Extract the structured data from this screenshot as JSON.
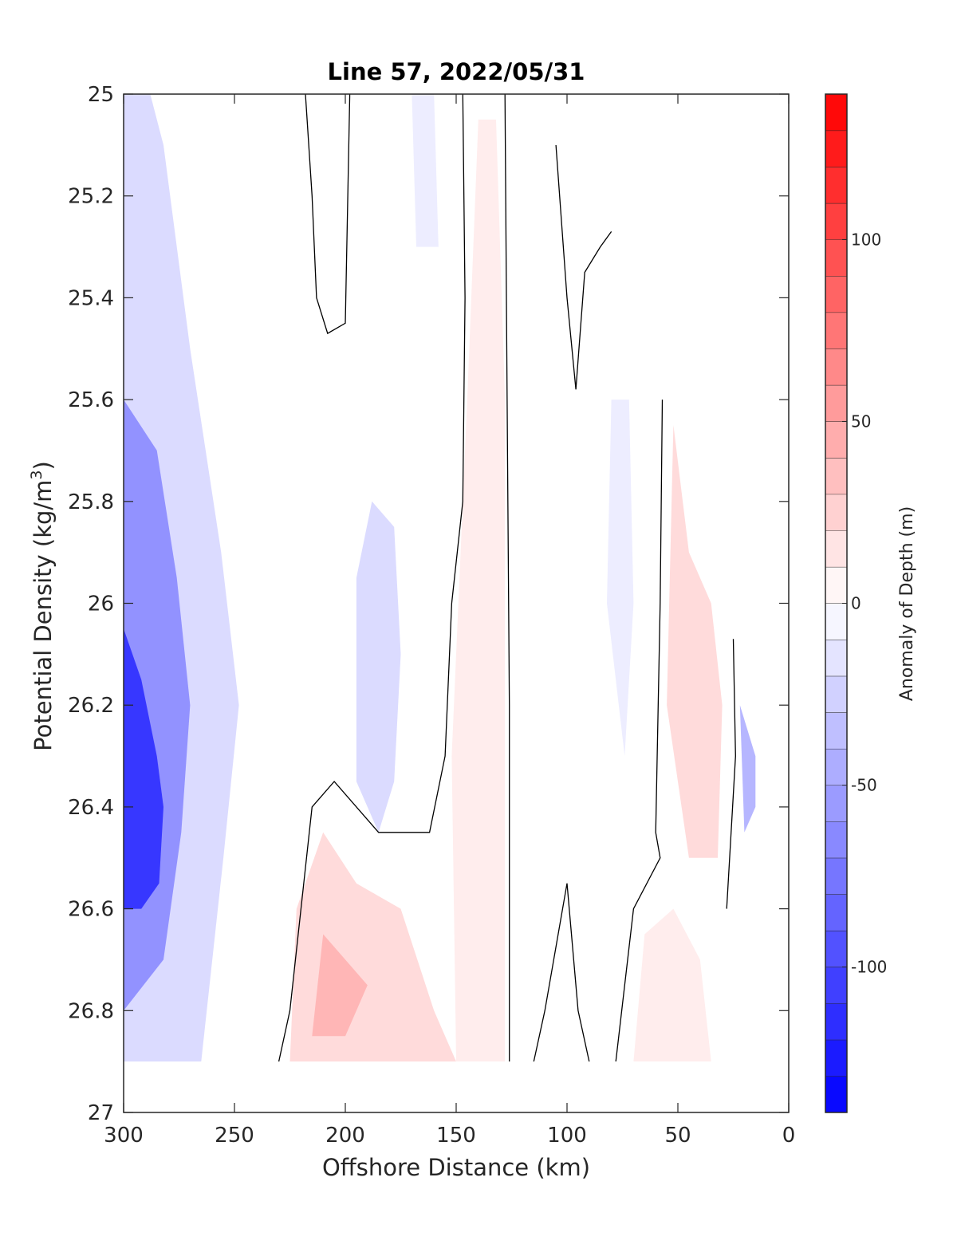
{
  "chart_data": {
    "type": "contour",
    "title": "Line 57, 2022/05/31",
    "xlabel": "Offshore Distance (km)",
    "ylabel_main": "Potential Density (kg/m",
    "ylabel_sup": "3",
    "ylabel_close": ")",
    "xlim": [
      300,
      0
    ],
    "ylim": [
      25,
      27
    ],
    "xticks": [
      300,
      250,
      200,
      150,
      100,
      50,
      0
    ],
    "yticks": [
      25,
      25.2,
      25.4,
      25.6,
      25.8,
      26,
      26.2,
      26.4,
      26.6,
      26.8,
      27
    ],
    "xtick_labels": [
      "300",
      "250",
      "200",
      "150",
      "100",
      "50",
      "0"
    ],
    "ytick_labels": [
      "25",
      "25.2",
      "25.4",
      "25.6",
      "25.8",
      "26",
      "26.2",
      "26.4",
      "26.6",
      "26.8",
      "27"
    ],
    "colorbar": {
      "label": "Anomaly of Depth (m)",
      "range": [
        -140,
        140
      ],
      "step": 10,
      "ticks": [
        100,
        50,
        0,
        -50,
        -100
      ],
      "tick_labels": [
        "100",
        "50",
        "0",
        "-50",
        "-100"
      ],
      "colors": {
        "negative": "#0000ff",
        "zero": "#ffffff",
        "positive": "#ff0000"
      }
    },
    "fields": [
      {
        "name": "offshore negative",
        "points": [
          [
            300,
            25.0
          ],
          [
            288,
            25.0
          ],
          [
            282,
            25.1
          ],
          [
            270,
            25.5
          ],
          [
            256,
            25.9
          ],
          [
            248,
            26.2
          ],
          [
            255,
            26.5
          ],
          [
            265,
            26.9
          ],
          [
            300,
            26.9
          ]
        ],
        "level": -20
      },
      {
        "name": "offshore strong negative",
        "points": [
          [
            300,
            25.6
          ],
          [
            285,
            25.7
          ],
          [
            276,
            25.95
          ],
          [
            270,
            26.2
          ],
          [
            274,
            26.45
          ],
          [
            282,
            26.7
          ],
          [
            300,
            26.8
          ]
        ],
        "level": -60
      },
      {
        "name": "core minimum",
        "points": [
          [
            300,
            26.05
          ],
          [
            292,
            26.15
          ],
          [
            285,
            26.3
          ],
          [
            282,
            26.4
          ],
          [
            284,
            26.55
          ],
          [
            292,
            26.6
          ],
          [
            300,
            26.6
          ]
        ],
        "level": -110
      },
      {
        "name": "mid negative",
        "points": [
          [
            188,
            25.8
          ],
          [
            178,
            25.85
          ],
          [
            175,
            26.1
          ],
          [
            178,
            26.35
          ],
          [
            185,
            26.45
          ],
          [
            195,
            26.35
          ],
          [
            195,
            25.95
          ]
        ],
        "level": -20
      },
      {
        "name": "upper negative",
        "points": [
          [
            170,
            25.0
          ],
          [
            160,
            25.0
          ],
          [
            158,
            25.3
          ],
          [
            168,
            25.3
          ]
        ],
        "level": -10
      },
      {
        "name": "nearshore negative",
        "points": [
          [
            80,
            25.6
          ],
          [
            72,
            25.6
          ],
          [
            70,
            26.0
          ],
          [
            74,
            26.3
          ],
          [
            82,
            26.0
          ]
        ],
        "level": -10
      },
      {
        "name": "coastal negative",
        "points": [
          [
            22,
            26.2
          ],
          [
            15,
            26.3
          ],
          [
            15,
            26.4
          ],
          [
            20,
            26.45
          ]
        ],
        "level": -40
      },
      {
        "name": "mid positive column",
        "points": [
          [
            140,
            25.05
          ],
          [
            132,
            25.05
          ],
          [
            128,
            25.6
          ],
          [
            128,
            26.9
          ],
          [
            150,
            26.9
          ],
          [
            152,
            26.3
          ],
          [
            145,
            25.6
          ]
        ],
        "level": 10
      },
      {
        "name": "deep positive",
        "points": [
          [
            225,
            26.9
          ],
          [
            222,
            26.6
          ],
          [
            210,
            26.45
          ],
          [
            195,
            26.55
          ],
          [
            175,
            26.6
          ],
          [
            160,
            26.8
          ],
          [
            150,
            26.9
          ]
        ],
        "level": 20
      },
      {
        "name": "deep positive core",
        "points": [
          [
            215,
            26.85
          ],
          [
            210,
            26.65
          ],
          [
            200,
            26.7
          ],
          [
            190,
            26.75
          ],
          [
            200,
            26.85
          ]
        ],
        "level": 40
      },
      {
        "name": "nearshore positive",
        "points": [
          [
            52,
            25.65
          ],
          [
            45,
            25.9
          ],
          [
            35,
            26.0
          ],
          [
            30,
            26.2
          ],
          [
            32,
            26.5
          ],
          [
            45,
            26.5
          ],
          [
            55,
            26.2
          ]
        ],
        "level": 20
      },
      {
        "name": "nearshore deep positive",
        "points": [
          [
            70,
            26.9
          ],
          [
            65,
            26.65
          ],
          [
            52,
            26.6
          ],
          [
            40,
            26.7
          ],
          [
            35,
            26.9
          ]
        ],
        "level": 10
      }
    ],
    "zero_contours": [
      [
        [
          218,
          25.0
        ],
        [
          215,
          25.2
        ],
        [
          213,
          25.4
        ],
        [
          208,
          25.47
        ],
        [
          200,
          25.45
        ],
        [
          198,
          25.0
        ]
      ],
      [
        [
          147,
          25.0
        ],
        [
          146,
          25.4
        ],
        [
          147,
          25.8
        ],
        [
          152,
          26.0
        ],
        [
          155,
          26.3
        ],
        [
          162,
          26.45
        ],
        [
          185,
          26.45
        ],
        [
          205,
          26.35
        ],
        [
          215,
          26.4
        ],
        [
          225,
          26.8
        ],
        [
          230,
          26.9
        ]
      ],
      [
        [
          128,
          25.0
        ],
        [
          127,
          25.6
        ],
        [
          126,
          26.2
        ],
        [
          126,
          26.9
        ]
      ],
      [
        [
          105,
          25.1
        ],
        [
          100,
          25.4
        ],
        [
          96,
          25.58
        ],
        [
          92,
          25.35
        ],
        [
          85,
          25.3
        ],
        [
          80,
          25.27
        ]
      ],
      [
        [
          57,
          25.6
        ],
        [
          58,
          26.0
        ],
        [
          60,
          26.45
        ],
        [
          58,
          26.5
        ],
        [
          70,
          26.6
        ],
        [
          78,
          26.9
        ]
      ],
      [
        [
          90,
          26.9
        ],
        [
          95,
          26.8
        ],
        [
          100,
          26.55
        ],
        [
          110,
          26.8
        ],
        [
          115,
          26.9
        ]
      ],
      [
        [
          25,
          26.07
        ],
        [
          24,
          26.3
        ],
        [
          28,
          26.6
        ]
      ]
    ]
  }
}
